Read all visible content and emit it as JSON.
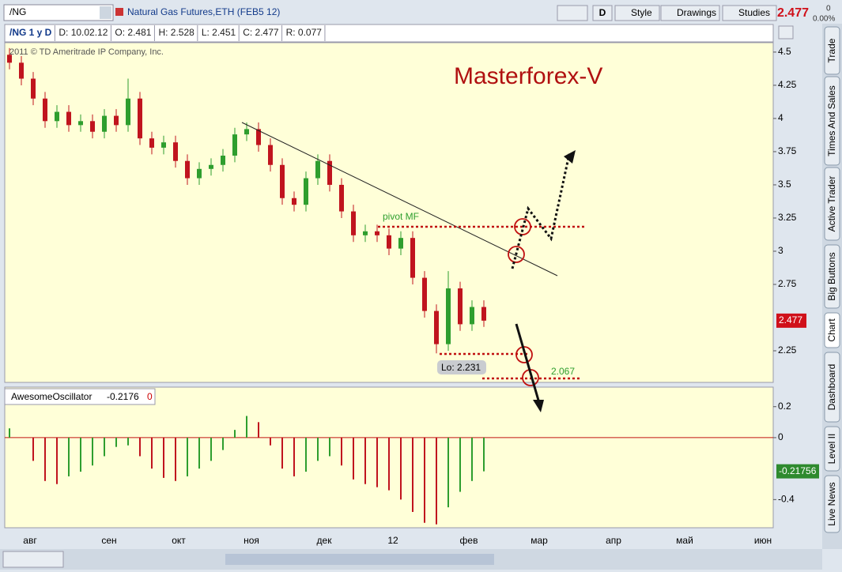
{
  "toolbar": {
    "symbol": "/NG",
    "description": "Natural Gas Futures,ETH (FEB5 12)",
    "period": "D",
    "buttons": [
      "Style",
      "Drawings",
      "Studies"
    ],
    "last": "2.477",
    "change": "0",
    "change_pct": "0.00%"
  },
  "info_bar": [
    "/NG 1 y D",
    "D: 10.02.12",
    "O: 2.481",
    "H: 2.528",
    "L: 2.451",
    "C: 2.477",
    "R: 0.077"
  ],
  "side_tabs": [
    "Trade",
    "Times And Sales",
    "Active Trader",
    "Big Buttons",
    "Chart",
    "Dashboard",
    "Level II",
    "Live News"
  ],
  "price_chart": {
    "type": "candlestick",
    "copyright": "2011 © TD Ameritrade IP Company, Inc.",
    "watermark": "Masterforex-V",
    "pivot_label": "pivot MF",
    "low_label": "Lo: 2.231",
    "target_label": "2.067",
    "last_label": "2.477",
    "ylim": [
      2.012,
      4.571
    ],
    "yticks": [
      4.5,
      4.25,
      4,
      3.75,
      3.5,
      3.25,
      3,
      2.75,
      2.25
    ],
    "open": [
      4.48,
      4.42,
      4.3,
      4.15,
      3.98,
      4.05,
      3.95,
      3.98,
      3.9,
      4.02,
      3.95,
      4.15,
      3.85,
      3.78,
      3.82,
      3.68,
      3.55,
      3.62,
      3.65,
      3.72,
      3.88,
      3.92,
      3.8,
      3.65,
      3.4,
      3.35,
      3.55,
      3.68,
      3.5,
      3.3,
      3.12,
      3.15,
      3.12,
      3.02,
      3.1,
      2.8,
      2.55,
      2.3,
      2.72,
      2.45,
      2.58
    ],
    "high": [
      4.53,
      4.47,
      4.35,
      4.2,
      4.1,
      4.1,
      4.03,
      4.03,
      4.07,
      4.07,
      4.3,
      4.2,
      3.9,
      3.87,
      3.87,
      3.73,
      3.67,
      3.7,
      3.77,
      3.93,
      3.97,
      3.97,
      3.85,
      3.7,
      3.45,
      3.6,
      3.73,
      3.73,
      3.55,
      3.35,
      3.2,
      3.2,
      3.17,
      3.15,
      3.15,
      2.85,
      2.6,
      2.85,
      2.77,
      2.63,
      2.63
    ],
    "low": [
      4.37,
      4.25,
      4.1,
      3.93,
      3.93,
      3.9,
      3.9,
      3.85,
      3.85,
      3.9,
      3.9,
      3.8,
      3.73,
      3.73,
      3.63,
      3.5,
      3.5,
      3.57,
      3.6,
      3.67,
      3.83,
      3.75,
      3.6,
      3.35,
      3.3,
      3.3,
      3.5,
      3.45,
      3.25,
      3.07,
      3.07,
      3.07,
      2.97,
      2.97,
      2.75,
      2.5,
      2.231,
      2.25,
      2.4,
      2.4,
      2.43
    ],
    "close": [
      4.42,
      4.3,
      4.15,
      3.98,
      4.05,
      3.95,
      3.98,
      3.9,
      4.02,
      3.95,
      4.15,
      3.85,
      3.78,
      3.82,
      3.68,
      3.55,
      3.62,
      3.65,
      3.72,
      3.88,
      3.92,
      3.8,
      3.65,
      3.4,
      3.35,
      3.55,
      3.68,
      3.5,
      3.3,
      3.12,
      3.15,
      3.12,
      3.02,
      3.1,
      2.8,
      2.55,
      2.3,
      2.72,
      2.45,
      2.58,
      2.477
    ],
    "up_color": "#2e9e2e",
    "down_color": "#c0141e"
  },
  "oscillator": {
    "type": "bar",
    "name": "AwesomeOscillator",
    "value_label": "-0.2176",
    "extra": "0",
    "last_label": "-0.21756",
    "ylim": [
      -0.582,
      0.316
    ],
    "yticks": [
      0.2,
      0,
      -0.4
    ],
    "values": [
      0.06,
      0.0,
      -0.15,
      -0.28,
      -0.3,
      -0.25,
      -0.22,
      -0.18,
      -0.12,
      -0.06,
      -0.05,
      -0.12,
      -0.2,
      -0.26,
      -0.28,
      -0.25,
      -0.2,
      -0.15,
      -0.08,
      0.05,
      0.14,
      0.1,
      -0.05,
      -0.2,
      -0.25,
      -0.22,
      -0.15,
      -0.12,
      -0.18,
      -0.27,
      -0.3,
      -0.32,
      -0.34,
      -0.4,
      -0.48,
      -0.55,
      -0.56,
      -0.45,
      -0.35,
      -0.28,
      -0.2176
    ]
  },
  "x_labels": [
    "авг",
    "сен",
    "окт",
    "ноя",
    "дек",
    "12",
    "фев",
    "мар",
    "апр",
    "май",
    "июн"
  ]
}
